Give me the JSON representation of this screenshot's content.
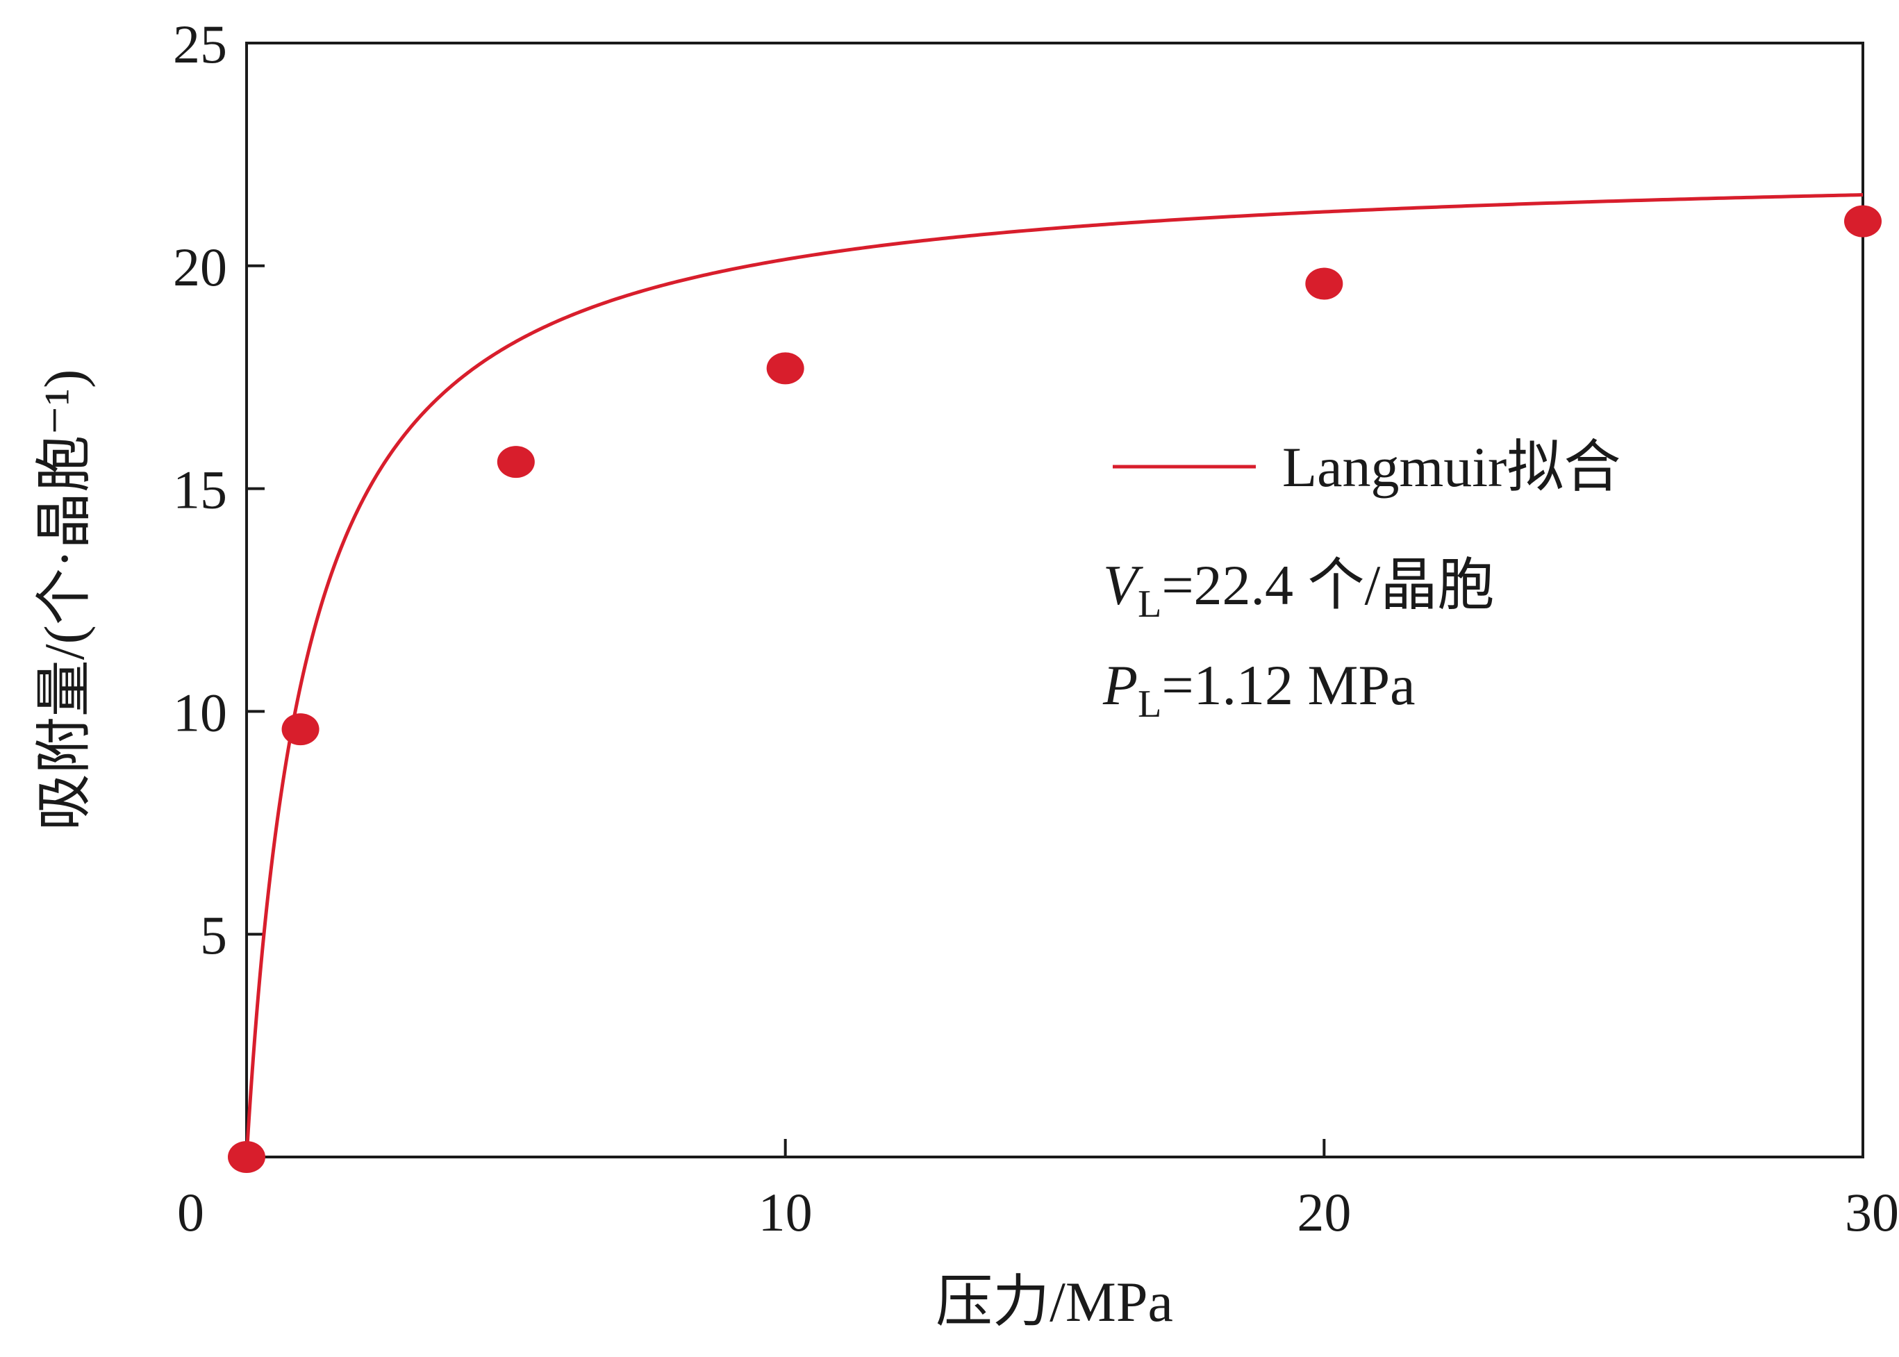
{
  "chart_data": {
    "type": "scatter",
    "title": "",
    "xlabel": "压力/MPa",
    "ylabel": "吸附量/(个·晶胞⁻¹)",
    "xlim": [
      0,
      30
    ],
    "ylim": [
      0,
      25
    ],
    "x_ticks": [
      "0",
      "10",
      "20",
      "30"
    ],
    "y_ticks": [
      "5",
      "10",
      "15",
      "20",
      "25"
    ],
    "grid": false,
    "legend_position": "right",
    "series": [
      {
        "kind": "points",
        "color": "#d81e2c",
        "x": [
          0,
          1,
          5,
          10,
          20,
          30
        ],
        "y": [
          0,
          9.6,
          15.6,
          17.7,
          19.6,
          21.0
        ]
      },
      {
        "name": "Langmuir拟合",
        "kind": "line",
        "color": "#d81e2c",
        "model": "langmuir",
        "VL": 22.4,
        "PL": 1.12
      }
    ],
    "annotations": {
      "vl_symbol": "V",
      "vl_sub": "L",
      "vl_text": "=22.4 个/晶胞",
      "pl_symbol": "P",
      "pl_sub": "L",
      "pl_text": "=1.12 MPa"
    }
  }
}
